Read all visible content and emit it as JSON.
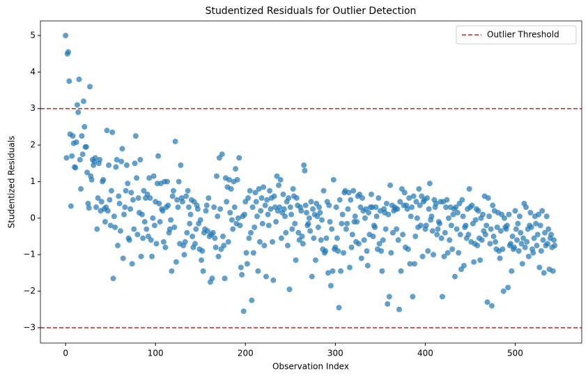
{
  "chart_data": {
    "type": "scatter",
    "title": "Studentized Residuals for Outlier Detection",
    "x_label": "Observation Index",
    "y_label": "Studentized Residuals",
    "color": "#1f77b4",
    "xlim": [
      -28,
      574
    ],
    "ylim": [
      -3.42,
      5.4
    ],
    "xticks": [
      0,
      100,
      200,
      300,
      400,
      500
    ],
    "yticks": [
      {
        "value": -3,
        "label": "−3"
      },
      {
        "value": -2,
        "label": "−2"
      },
      {
        "value": -1,
        "label": "−1"
      },
      0,
      1,
      2,
      3,
      4,
      5
    ],
    "thresholds": [
      3,
      -3
    ],
    "threshold_label": "Outlier Threshold",
    "threshold_color": "#e41a1c",
    "legend": "upper right",
    "x": [
      0,
      1,
      2,
      3,
      4,
      5,
      6,
      7,
      8,
      9,
      10,
      11,
      12,
      13,
      14,
      15,
      16,
      17,
      18,
      19,
      20,
      21,
      22,
      23,
      24,
      25,
      26,
      27,
      28,
      29,
      30,
      31,
      32,
      33,
      34,
      35,
      36,
      37,
      38,
      39,
      40,
      41,
      42,
      43,
      44,
      45,
      46,
      47,
      48,
      49,
      50,
      51,
      52,
      53,
      54,
      55,
      56,
      57,
      58,
      59,
      60,
      61,
      62,
      63,
      64,
      65,
      66,
      67,
      68,
      69,
      70,
      71,
      72,
      73,
      74,
      75,
      76,
      77,
      78,
      79,
      80,
      81,
      82,
      83,
      84,
      85,
      86,
      87,
      88,
      89,
      90,
      91,
      92,
      93,
      94,
      95,
      96,
      97,
      98,
      99,
      100,
      101,
      102,
      103,
      104,
      105,
      106,
      107,
      108,
      109,
      110,
      111,
      112,
      113,
      114,
      115,
      116,
      117,
      118,
      119,
      120,
      121,
      122,
      123,
      124,
      125,
      126,
      127,
      128,
      129,
      130,
      131,
      132,
      133,
      134,
      135,
      136,
      137,
      138,
      139,
      140,
      141,
      142,
      143,
      144,
      145,
      146,
      147,
      148,
      149,
      150,
      151,
      152,
      153,
      154,
      155,
      156,
      157,
      158,
      159,
      160,
      161,
      162,
      163,
      164,
      165,
      166,
      167,
      168,
      169,
      170,
      171,
      172,
      173,
      174,
      175,
      176,
      177,
      178,
      179,
      180,
      181,
      182,
      183,
      184,
      185,
      186,
      187,
      188,
      189,
      190,
      191,
      192,
      193,
      194,
      195,
      196,
      197,
      198,
      199,
      200,
      201,
      202,
      203,
      204,
      205,
      206,
      207,
      208,
      209,
      210,
      211,
      212,
      213,
      214,
      215,
      216,
      217,
      218,
      219,
      220,
      221,
      222,
      223,
      224,
      225,
      226,
      227,
      228,
      229,
      230,
      231,
      232,
      233,
      234,
      235,
      236,
      237,
      238,
      239,
      240,
      241,
      242,
      243,
      244,
      245,
      246,
      247,
      248,
      249,
      250,
      251,
      252,
      253,
      254,
      255,
      256,
      257,
      258,
      259,
      260,
      261,
      262,
      263,
      264,
      265,
      266,
      267,
      268,
      269,
      270,
      271,
      272,
      273,
      274,
      275,
      276,
      277,
      278,
      279,
      280,
      281,
      282,
      283,
      284,
      285,
      286,
      287,
      288,
      289,
      290,
      291,
      292,
      293,
      294,
      295,
      296,
      297,
      298,
      299,
      300,
      301,
      302,
      303,
      304,
      305,
      306,
      307,
      308,
      309,
      310,
      311,
      312,
      313,
      314,
      315,
      316,
      317,
      318,
      319,
      320,
      321,
      322,
      323,
      324,
      325,
      326,
      327,
      328,
      329,
      330,
      331,
      332,
      333,
      334,
      335,
      336,
      337,
      338,
      339,
      340,
      341,
      342,
      343,
      344,
      345,
      346,
      347,
      348,
      349,
      350,
      351,
      352,
      353,
      354,
      355,
      356,
      357,
      358,
      359,
      360,
      361,
      362,
      363,
      364,
      365,
      366,
      367,
      368,
      369,
      370,
      371,
      372,
      373,
      374,
      375,
      376,
      377,
      378,
      379,
      380,
      381,
      382,
      383,
      384,
      385,
      386,
      387,
      388,
      389,
      390,
      391,
      392,
      393,
      394,
      395,
      396,
      397,
      398,
      399,
      400,
      401,
      402,
      403,
      404,
      405,
      406,
      407,
      408,
      409,
      410,
      411,
      412,
      413,
      414,
      415,
      416,
      417,
      418,
      419,
      420,
      421,
      422,
      423,
      424,
      425,
      426,
      427,
      428,
      429,
      430,
      431,
      432,
      433,
      434,
      435,
      436,
      437,
      438,
      439,
      440,
      441,
      442,
      443,
      444,
      445,
      446,
      447,
      448,
      449,
      450,
      451,
      452,
      453,
      454,
      455,
      456,
      457,
      458,
      459,
      460,
      461,
      462,
      463,
      464,
      465,
      466,
      467,
      468,
      469,
      470,
      471,
      472,
      473,
      474,
      475,
      476,
      477,
      478,
      479,
      480,
      481,
      482,
      483,
      484,
      485,
      486,
      487,
      488,
      489,
      490,
      491,
      492,
      493,
      494,
      495,
      496,
      497,
      498,
      499,
      500,
      501,
      502,
      503,
      504,
      505,
      506,
      507,
      508,
      509,
      510,
      511,
      512,
      513,
      514,
      515,
      516,
      517,
      518,
      519,
      520,
      521,
      522,
      523,
      524,
      525,
      526,
      527,
      528,
      529,
      530,
      531,
      532,
      533,
      534,
      535,
      536,
      537,
      538,
      539,
      540,
      541,
      542,
      543,
      544
    ],
    "values": [
      5.0,
      1.65,
      4.5,
      4.55,
      3.75,
      2.3,
      0.33,
      1.7,
      2.25,
      2.05,
      1.4,
      1.38,
      2.08,
      3.1,
      2.9,
      3.8,
      1.6,
      0.8,
      2.25,
      1.75,
      3.2,
      2.5,
      1.95,
      1.95,
      1.25,
      0.4,
      0.28,
      3.6,
      1.15,
      1.05,
      1.6,
      1.45,
      1.55,
      1.65,
      0.3,
      -0.3,
      0.55,
      1.5,
      1.6,
      0.2,
      0.45,
      1.0,
      1.05,
      0.25,
      -0.1,
      0.3,
      2.4,
      0.2,
      1.45,
      0.5,
      -0.2,
      0.75,
      2.35,
      -1.65,
      0.05,
      -0.25,
      1.4,
      1.6,
      -0.75,
      0.6,
      0.4,
      -0.35,
      1.55,
      1.9,
      -1.1,
      0.1,
      0.3,
      0.75,
      1.45,
      0.95,
      -0.55,
      -0.6,
      0.25,
      0.7,
      -1.25,
      0.5,
      -0.3,
      1.5,
      2.25,
      1.1,
      -0.45,
      0.55,
      0.15,
      1.6,
      -1.05,
      0.1,
      -0.55,
      0.75,
      -0.1,
      0.55,
      -0.3,
      0.65,
      -0.5,
      1.1,
      0.55,
      -0.6,
      -1.05,
      0.0,
      1.15,
      -0.2,
      0.45,
      -0.7,
      0.95,
      1.7,
      0.4,
      -0.1,
      0.95,
      0.25,
      0.2,
      -0.65,
      1.0,
      -0.8,
      0.3,
      1.0,
      0.35,
      -0.4,
      -0.3,
      -0.05,
      -1.45,
      0.6,
      0.75,
      -0.25,
      2.1,
      -1.2,
      0.5,
      0.3,
      1.0,
      -0.7,
      1.45,
      0.55,
      0.45,
      -0.75,
      -1.0,
      -0.65,
      0.6,
      -0.4,
      0.75,
      0.3,
      -0.15,
      0.1,
      0.5,
      -0.5,
      -0.8,
      0.45,
      -0.7,
      -0.3,
      0.35,
      0.25,
      -0.15,
      -0.85,
      -0.05,
      -1.15,
      -0.9,
      -1.45,
      -0.4,
      -0.3,
      0.2,
      0.35,
      -0.35,
      0.55,
      -0.5,
      -1.75,
      -0.45,
      -1.65,
      -0.4,
      0.3,
      -0.55,
      -0.8,
      1.15,
      0.05,
      -1.05,
      1.65,
      0.25,
      -0.85,
      1.75,
      -0.5,
      -0.75,
      -1.65,
      1.1,
      0.45,
      0.85,
      -0.65,
      1.05,
      0.15,
      0.8,
      -0.05,
      -0.3,
      1.0,
      0.3,
      1.35,
      -0.15,
      1.05,
      0.0,
      1.65,
      -0.2,
      -1.35,
      -1.55,
      0.05,
      -2.55,
      0.1,
      0.45,
      -0.95,
      -1.25,
      0.55,
      -0.55,
      0.75,
      -0.4,
      -2.25,
      0.3,
      -0.95,
      -0.25,
      0.7,
      0.45,
      0.05,
      -1.45,
      0.8,
      -0.65,
      0.2,
      0.55,
      -0.15,
      0.85,
      -0.75,
      0.35,
      -1.6,
      0.5,
      0.1,
      -0.2,
      0.75,
      0.25,
      0.55,
      -0.65,
      -1.7,
      0.6,
      0.3,
      -0.1,
      1.15,
      0.2,
      0.9,
      0.3,
      1.05,
      -0.55,
      0.15,
      0.65,
      0.25,
      0.05,
      -0.4,
      0.45,
      -0.75,
      0.55,
      -1.95,
      0.3,
      0.1,
      -0.3,
      0.8,
      0.6,
      -0.15,
      -1.15,
      0.55,
      0.35,
      -0.4,
      -0.6,
      0.3,
      0.2,
      -0.5,
      -0.7,
      1.45,
      1.3,
      0.35,
      0.15,
      -0.2,
      -0.15,
      0.0,
      -0.35,
      0.45,
      -1.6,
      0.25,
      -0.55,
      0.1,
      -1.15,
      0.4,
      0.05,
      -0.25,
      0.3,
      0.15,
      -0.6,
      -0.05,
      -0.85,
      0.75,
      -0.95,
      -0.9,
      -0.55,
      0.45,
      -1.5,
      0.35,
      -0.1,
      -1.85,
      -0.3,
      -1.45,
      1.05,
      -0.85,
      -0.8,
      0.3,
      -0.55,
      -0.9,
      -2.45,
      0.5,
      -1.45,
      -0.15,
      0.1,
      -0.95,
      0.7,
      0.75,
      -0.3,
      -0.15,
      0.25,
      0.7,
      -1.35,
      0.5,
      -0.8,
      -0.45,
      0.75,
      -0.1,
      0.05,
      -0.65,
      -0.1,
      0.6,
      -0.7,
      0.65,
      0.3,
      -1.1,
      0.55,
      0.2,
      -0.6,
      0.0,
      0.25,
      -0.9,
      -1.3,
      0.15,
      -0.45,
      0.3,
      0.65,
      0.3,
      -0.5,
      -0.2,
      -0.25,
      0.3,
      0.05,
      -0.85,
      0.55,
      -0.7,
      0.2,
      -0.9,
      -1.45,
      -0.6,
      0.25,
      0.15,
      -0.3,
      0.4,
      -2.35,
      0.1,
      -2.15,
      0.9,
      -0.95,
      0.35,
      -0.4,
      0.2,
      0.3,
      0.25,
      -0.3,
      0.25,
      -0.6,
      -2.5,
      0.45,
      -1.45,
      0.8,
      -0.45,
      0.35,
      0.7,
      -0.8,
      0.35,
      0.25,
      -0.85,
      0.55,
      -1.25,
      0.05,
      0.3,
      -2.15,
      0.6,
      -1.25,
      -0.5,
      0.45,
      0.0,
      -0.25,
      0.8,
      0.35,
      -0.2,
      0.6,
      -1.05,
      0.45,
      0.5,
      -0.3,
      -0.2,
      0.55,
      -0.9,
      0.25,
      0.95,
      -0.05,
      0.05,
      -0.35,
      -1.0,
      0.5,
      0.3,
      0.4,
      -0.45,
      -0.3,
      -0.1,
      -0.15,
      0.45,
      -0.55,
      -2.15,
      0.45,
      -1.05,
      -0.4,
      0.3,
      0.5,
      -0.95,
      0.0,
      -0.6,
      0.3,
      -0.2,
      -0.85,
      0.1,
      0.25,
      -1.6,
      0.3,
      -0.3,
      0.15,
      -0.95,
      0.4,
      -0.45,
      -1.4,
      0.5,
      0.05,
      -1.3,
      -0.25,
      -0.2,
      -0.55,
      0.25,
      -0.45,
      0.8,
      0.3,
      -0.65,
      0.35,
      -0.15,
      -1.2,
      -0.7,
      -0.05,
      0.25,
      -0.75,
      0.2,
      -0.55,
      -1.15,
      0.0,
      -0.6,
      0.1,
      -0.35,
      0.6,
      -0.45,
      -0.2,
      -2.3,
      0.55,
      0.05,
      -0.7,
      -0.3,
      -2.4,
      0.35,
      -0.5,
      0.2,
      -0.65,
      -0.85,
      -0.25,
      0.15,
      -0.9,
      -1.1,
      -0.35,
      0.1,
      -0.85,
      -2.0,
      0.0,
      -0.25,
      -0.3,
      -0.2,
      -1.9,
      0.1,
      -0.75,
      -0.7,
      -1.45,
      -0.5,
      -0.85,
      -0.8,
      0.2,
      -0.3,
      -0.6,
      -0.15,
      -0.9,
      0.05,
      -0.4,
      -0.7,
      -1.25,
      -0.55,
      0.4,
      -0.8,
      0.3,
      -0.65,
      -0.3,
      -1.05,
      -0.2,
      0.15,
      -0.25,
      -0.85,
      -0.95,
      -0.55,
      0.05,
      -0.15,
      -0.75,
      -0.45,
      0.1,
      -1.35,
      -0.2,
      -0.9,
      0.2,
      -0.6,
      -1.5,
      -0.4,
      -0.75,
      0.05,
      -0.7,
      -0.3,
      -1.4,
      -0.55,
      -0.45,
      -0.8,
      -1.45,
      -0.6,
      -0.75
    ]
  }
}
